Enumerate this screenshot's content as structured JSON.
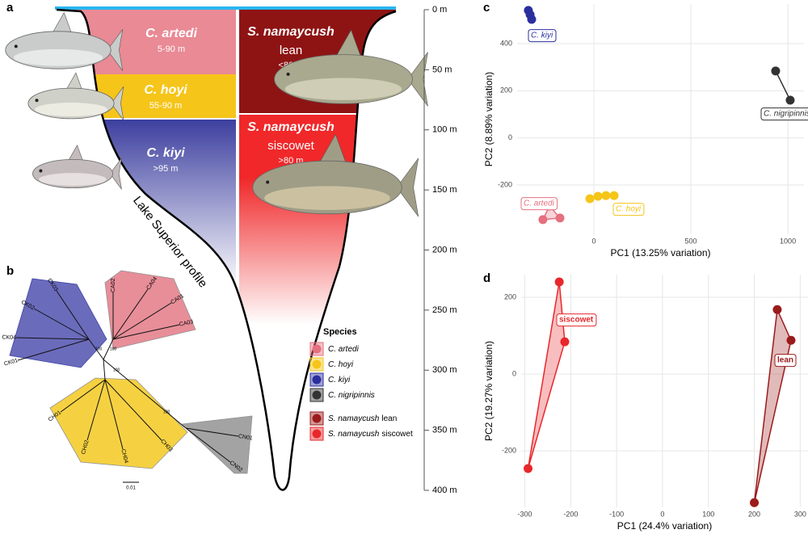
{
  "panel_a": {
    "letter": "a",
    "zones": [
      {
        "name": "C. artedi",
        "depth": "5-90 m",
        "color": "#e98a95"
      },
      {
        "name": "C. hoyi",
        "depth": "55-90 m",
        "color": "#f6c51a"
      },
      {
        "name": "C. kiyi",
        "depth": ">95 m",
        "color": "#3d3f9f"
      },
      {
        "name": "S. namaycush",
        "morph": "lean",
        "depth": "<80 m",
        "color": "#8e1414"
      },
      {
        "name": "S. namaycush",
        "morph": "siscowet",
        "depth": ">80 m",
        "color": "#f0282a"
      }
    ],
    "profile_label": "Lake Superior profile",
    "depth_axis": {
      "lim": [
        0,
        400
      ],
      "ticks": [
        {
          "value": 0,
          "label": "0 m"
        },
        {
          "value": 50,
          "label": "50 m"
        },
        {
          "value": 100,
          "label": "100 m"
        },
        {
          "value": 150,
          "label": "150 m"
        },
        {
          "value": 200,
          "label": "200 m"
        },
        {
          "value": 250,
          "label": "250 m"
        },
        {
          "value": 300,
          "label": "300 m"
        },
        {
          "value": 350,
          "label": "350 m"
        },
        {
          "value": 400,
          "label": "400 m"
        }
      ]
    }
  },
  "panel_b": {
    "letter": "b",
    "clades": [
      {
        "color": "#5b5bb5",
        "leaves": [
          "CK03",
          "CK02",
          "CK04",
          "CK01"
        ]
      },
      {
        "color": "#e5828e",
        "leaves": [
          "CA02",
          "CA04",
          "CA01",
          "CA03"
        ]
      },
      {
        "color": "#f4cd2e",
        "leaves": [
          "CH01",
          "CH02",
          "CH04",
          "CH03"
        ]
      },
      {
        "color": "#9a9a9a",
        "leaves": [
          "CN01",
          "CN02"
        ]
      }
    ],
    "node_labels": [
      "100",
      "100",
      "100",
      "100"
    ],
    "scale_label": "0.01"
  },
  "legend": {
    "title": "Species",
    "items": [
      {
        "name": "C. artedi",
        "color": "#e5707f"
      },
      {
        "name": "C. hoyi",
        "color": "#f5c518"
      },
      {
        "name": "C. kiyi",
        "color": "#2b2f9e"
      },
      {
        "name": "C. nigripinnis",
        "color": "#333333"
      },
      {
        "name": "S. namaycush",
        "morph": "lean",
        "color": "#9b1b1b"
      },
      {
        "name": "S. namaycush",
        "morph": "siscowet",
        "color": "#e8272b"
      }
    ]
  },
  "chart_data": [
    {
      "type": "scatter",
      "panel_label": "c",
      "x_label": "PC1 (13.25% variation)",
      "y_label": "PC2 (8.89% variation)",
      "xlim": [
        -396,
        1083
      ],
      "ylim": [
        -409,
        568
      ],
      "xticks": [
        0,
        500,
        1000
      ],
      "yticks": [
        -200,
        0,
        200,
        400
      ],
      "grid": true,
      "series": [
        {
          "name": "C. kiyi",
          "color": "#2b2f9e",
          "x": [
            -338,
            -329,
            -321
          ],
          "values": [
            541,
            523,
            503
          ]
        },
        {
          "name": "C. nigripinnis",
          "color": "#333333",
          "x": [
            937,
            1012
          ],
          "values": [
            284,
            160
          ]
        },
        {
          "name": "C. artedi",
          "color": "#e5707f",
          "x": [
            -229,
            -263,
            -175
          ],
          "values": [
            -289,
            -347,
            -340
          ]
        },
        {
          "name": "C. hoyi",
          "color": "#f5c518",
          "x": [
            -21,
            21,
            62,
            104
          ],
          "values": [
            -258,
            -248,
            -245,
            -245
          ]
        }
      ]
    },
    {
      "type": "scatter",
      "panel_label": "d",
      "x_label": "PC1 (24.4% variation)",
      "y_label": "PC2 (19.27% variation)",
      "xlim": [
        -308,
        317
      ],
      "ylim": [
        -347,
        259
      ],
      "xticks": [
        -300,
        -200,
        -100,
        0,
        100,
        200,
        300
      ],
      "yticks": [
        -200,
        0,
        200
      ],
      "grid": true,
      "series": [
        {
          "name": "siscowet",
          "color": "#e8272b",
          "x": [
            -225,
            -213,
            -293
          ],
          "values": [
            240,
            84,
            -246
          ]
        },
        {
          "name": "lean",
          "color": "#9b1b1b",
          "x": [
            250,
            280,
            200
          ],
          "values": [
            168,
            88,
            -335
          ]
        }
      ]
    }
  ]
}
